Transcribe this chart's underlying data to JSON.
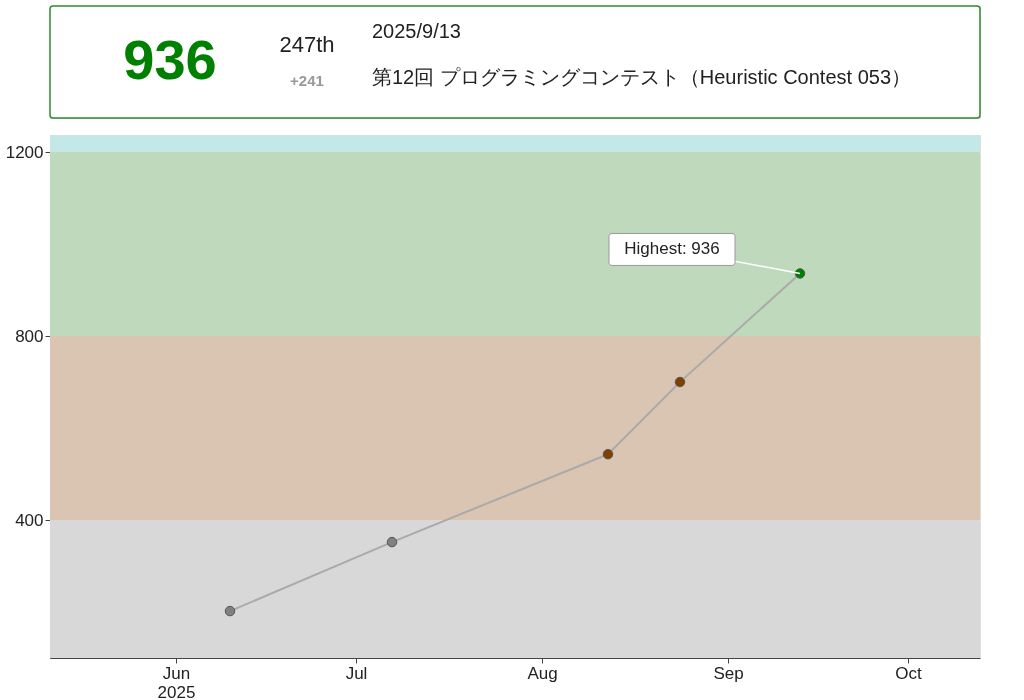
{
  "chart_data": {
    "type": "line",
    "annotations": [
      "936",
      "247th",
      "+241",
      "2025/9/13",
      "第12回 プログラミングコンテスト（Heuristic Contest 053）",
      {
        "text": "Highest: 936",
        "x": "2025-09-13",
        "y": 936
      }
    ],
    "x": [
      "2025-06-10",
      "2025-07-07",
      "2025-08-12",
      "2025-08-24",
      "2025-09-13"
    ],
    "series": [
      {
        "color": "#aaaaaa",
        "values": [
          202,
          352,
          543,
          700,
          936
        ]
      }
    ],
    "colors": [
      "#808080",
      "#808080",
      "#804000",
      "#804000",
      "#008000"
    ],
    "xlim": [
      "2025-05-11",
      "2025-10-13"
    ],
    "xticks": [
      {
        "value": "2025-06-01",
        "label": "Jun\n2025"
      },
      {
        "value": "2025-07-01",
        "label": "Jul"
      },
      {
        "value": "2025-08-01",
        "label": "Aug"
      },
      {
        "value": "2025-09-01",
        "label": "Sep"
      },
      {
        "value": "2025-10-01",
        "label": "Oct"
      }
    ],
    "ylim": [
      100,
      1237
    ],
    "yticks": [
      400,
      800,
      1200
    ],
    "bands": [
      {
        "axis": "y",
        "from": 100,
        "to": 400,
        "color": "#d8d8d8"
      },
      {
        "axis": "y",
        "from": 400,
        "to": 800,
        "color": "#d9c5b2"
      },
      {
        "axis": "y",
        "from": 800,
        "to": 1200,
        "color": "#bfd9bc"
      },
      {
        "axis": "y",
        "from": 1200,
        "to": 1237,
        "color": "#c4e8e8"
      }
    ],
    "grid": true,
    "marker": "circle",
    "line_style": "solid"
  }
}
